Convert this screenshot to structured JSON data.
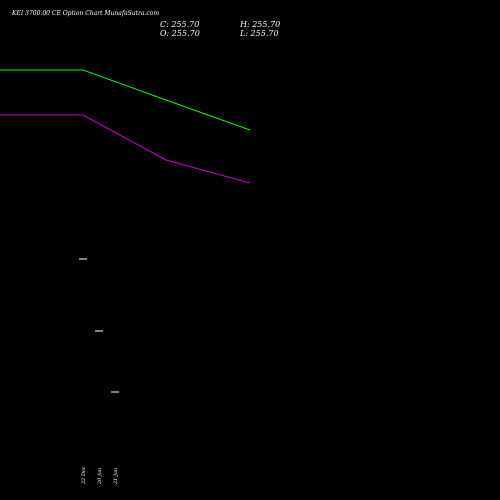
{
  "chart_data": {
    "type": "line",
    "title": "KEI 3700.00  CE Option  Chart MunafaSutra.com",
    "ohlc": {
      "close": "C: 255.70",
      "open": "O: 255.70",
      "high": "H: 255.70",
      "low": "L: 255.70"
    },
    "categories": [
      "22 Dec",
      "20 Jan",
      "21 Jan"
    ],
    "series": [
      {
        "color": "#00ff00",
        "values": [
          1500,
          1200,
          900
        ]
      },
      {
        "color": "#cc00cc",
        "values": [
          1050,
          600,
          370
        ]
      }
    ],
    "candles": [
      {
        "x": "22 Dec",
        "value": 255.7,
        "color": "#ffffff"
      },
      {
        "x": "20 Jan",
        "value": 255.7,
        "color": "#ffffff"
      },
      {
        "x": "21 Jan",
        "value": 255.7,
        "color": "#ffffff"
      }
    ],
    "grid": false,
    "background": "#000000"
  }
}
